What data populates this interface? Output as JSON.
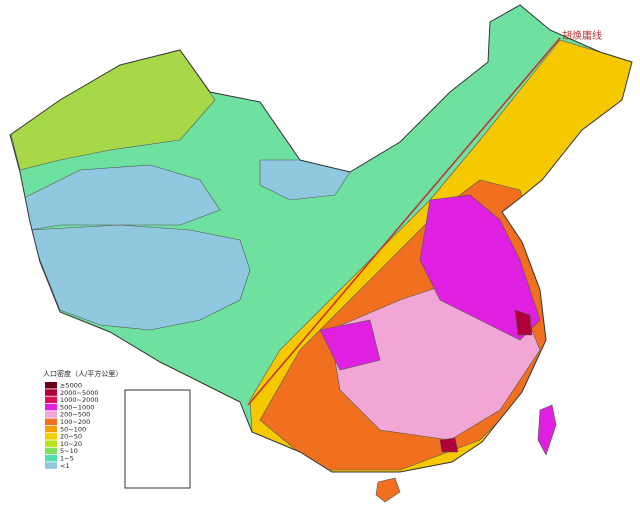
{
  "map": {
    "line_label": "胡焕庸线",
    "legend": {
      "title": "人口密度（人/平方公里）",
      "items": [
        {
          "label": "≥5000",
          "color": "#6b0016"
        },
        {
          "label": "2000~5000",
          "color": "#b0003a"
        },
        {
          "label": "1000~2000",
          "color": "#e0105a"
        },
        {
          "label": "500~1000",
          "color": "#e020e0"
        },
        {
          "label": "200~500",
          "color": "#f2a6d6"
        },
        {
          "label": "100~200",
          "color": "#f07020"
        },
        {
          "label": "50~100",
          "color": "#f5a000"
        },
        {
          "label": "20~50",
          "color": "#f0d000"
        },
        {
          "label": "10~20",
          "color": "#b8e020"
        },
        {
          "label": "5~10",
          "color": "#80e060"
        },
        {
          "label": "1~5",
          "color": "#50e0b0"
        },
        {
          "label": "<1",
          "color": "#90c8e0"
        }
      ]
    }
  }
}
